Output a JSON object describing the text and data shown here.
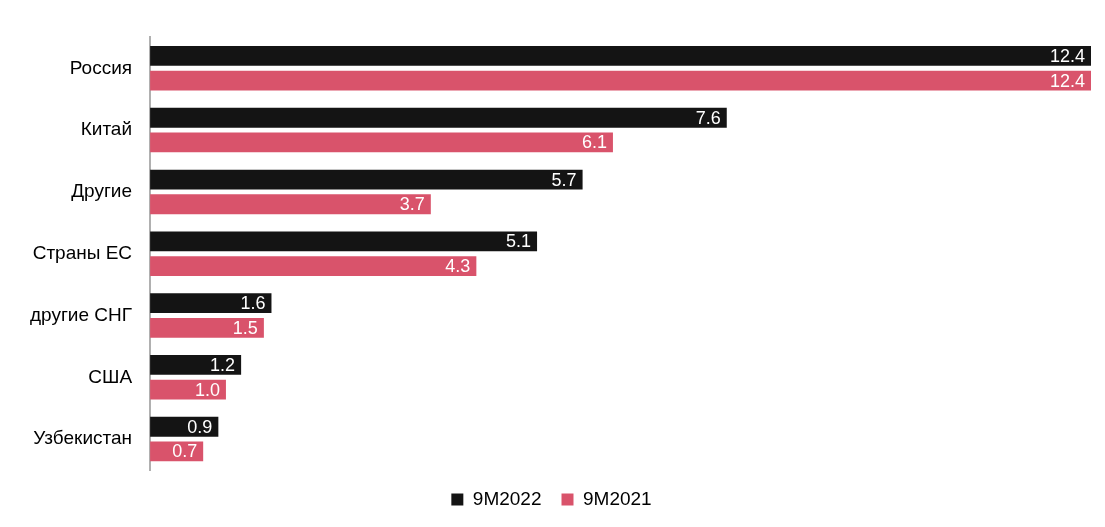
{
  "chart_data": {
    "type": "bar",
    "orientation": "horizontal",
    "categories": [
      "Россия",
      "Китай",
      "Другие",
      "Страны ЕС",
      "другие СНГ",
      "США",
      "Узбекистан"
    ],
    "series": [
      {
        "name": "9M2022",
        "color": "#141414",
        "values": [
          12.4,
          7.6,
          5.7,
          5.1,
          1.6,
          1.2,
          0.9
        ],
        "value_labels": [
          "12.4",
          "7.6",
          "5.7",
          "5.1",
          "1.6",
          "1.2",
          "0.9"
        ]
      },
      {
        "name": "9M2021",
        "color": "#d9536b",
        "values": [
          12.4,
          6.1,
          3.7,
          4.3,
          1.5,
          1.0,
          0.7
        ],
        "value_labels": [
          "12.4",
          "6.1",
          "3.7",
          "4.3",
          "1.5",
          "1.0",
          "0.7"
        ]
      }
    ],
    "xlim": [
      0,
      12.4
    ],
    "tick_labels": "y",
    "grid": false,
    "legend": "bottom"
  }
}
